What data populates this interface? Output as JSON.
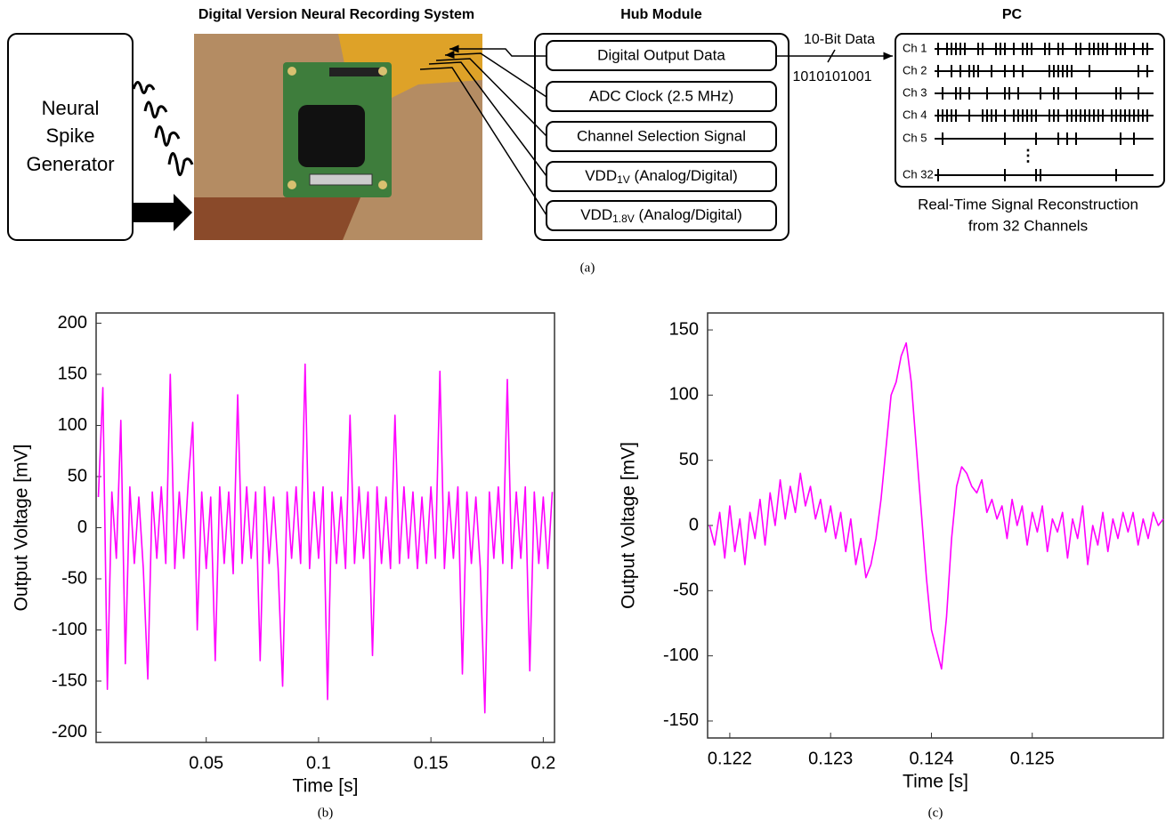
{
  "diagram": {
    "title": "Digital Version Neural Recording System",
    "generator": [
      "Neural",
      "Spike",
      "Generator"
    ],
    "hub": {
      "title": "Hub Module",
      "signals": [
        "Digital Output Data",
        "ADC Clock (2.5 MHz)",
        "Channel Selection Signal",
        {
          "name": "VDD",
          "sub": "1V",
          "rest": " (Analog/Digital)"
        },
        {
          "name": "VDD",
          "sub": "1.8V",
          "rest": " (Analog/Digital)"
        }
      ]
    },
    "link": {
      "label": "10-Bit Data",
      "bits": "1010101001"
    },
    "pc": {
      "title": "PC",
      "channels": [
        "Ch 1",
        "Ch 2",
        "Ch 3",
        "Ch 4",
        "Ch 5",
        "Ch 32"
      ],
      "caption": [
        "Real-Time Signal Reconstruction",
        "from 32 Channels"
      ]
    },
    "caption": "(a)"
  },
  "chart_data": [
    {
      "type": "line",
      "caption": "(b)",
      "x_label": "Time [s]",
      "y_label": "Output Voltage [mV]",
      "color": "#ff00ff",
      "xlim": [
        0.001,
        0.205
      ],
      "ylim": [
        -210,
        210
      ],
      "xticks": [
        0.05,
        0.1,
        0.15,
        0.2
      ],
      "yticks": [
        -200,
        -150,
        -100,
        -50,
        0,
        50,
        100,
        150,
        200
      ],
      "x": [
        0.002,
        0.004,
        0.006,
        0.008,
        0.01,
        0.012,
        0.014,
        0.016,
        0.018,
        0.02,
        0.022,
        0.024,
        0.026,
        0.028,
        0.03,
        0.032,
        0.034,
        0.036,
        0.038,
        0.04,
        0.042,
        0.044,
        0.046,
        0.048,
        0.05,
        0.052,
        0.054,
        0.056,
        0.058,
        0.06,
        0.062,
        0.064,
        0.066,
        0.068,
        0.07,
        0.072,
        0.074,
        0.076,
        0.078,
        0.08,
        0.082,
        0.084,
        0.086,
        0.088,
        0.09,
        0.092,
        0.094,
        0.096,
        0.098,
        0.1,
        0.102,
        0.104,
        0.106,
        0.108,
        0.11,
        0.112,
        0.114,
        0.116,
        0.118,
        0.12,
        0.122,
        0.124,
        0.126,
        0.128,
        0.13,
        0.132,
        0.134,
        0.136,
        0.138,
        0.14,
        0.142,
        0.144,
        0.146,
        0.148,
        0.15,
        0.152,
        0.154,
        0.156,
        0.158,
        0.16,
        0.162,
        0.164,
        0.166,
        0.168,
        0.17,
        0.172,
        0.174,
        0.176,
        0.178,
        0.18,
        0.182,
        0.184,
        0.186,
        0.188,
        0.19,
        0.192,
        0.194,
        0.196,
        0.198,
        0.2,
        0.202,
        0.204
      ],
      "values": [
        30,
        137,
        -158,
        35,
        -30,
        105,
        -133,
        40,
        -35,
        30,
        -40,
        -148,
        35,
        -30,
        40,
        -35,
        150,
        -40,
        35,
        -30,
        45,
        103,
        -100,
        35,
        -40,
        30,
        -130,
        40,
        -35,
        35,
        -45,
        130,
        -35,
        40,
        -30,
        35,
        -130,
        40,
        -35,
        30,
        -40,
        -155,
        35,
        -30,
        40,
        -35,
        160,
        -40,
        35,
        -30,
        40,
        -168,
        35,
        -35,
        30,
        -40,
        110,
        -35,
        40,
        -30,
        35,
        -125,
        40,
        -35,
        30,
        -40,
        110,
        -35,
        40,
        -30,
        35,
        -40,
        30,
        -35,
        40,
        -30,
        153,
        -40,
        35,
        -30,
        40,
        -143,
        35,
        -35,
        30,
        -40,
        -181,
        35,
        -30,
        40,
        -35,
        145,
        -40,
        35,
        -30,
        40,
        -140,
        35,
        -35,
        30,
        -40,
        35
      ]
    },
    {
      "type": "line",
      "caption": "(c)",
      "x_label": "Time [s]",
      "y_label": "Output Voltage [mV]",
      "color": "#ff00ff",
      "xlim": [
        0.12178,
        0.1263
      ],
      "ylim": [
        -163,
        163
      ],
      "xticks": [
        0.122,
        0.123,
        0.124,
        0.125
      ],
      "yticks": [
        -150,
        -100,
        -50,
        0,
        50,
        100,
        150
      ],
      "x": [
        0.1218,
        0.12185,
        0.1219,
        0.12195,
        0.122,
        0.12205,
        0.1221,
        0.12215,
        0.1222,
        0.12225,
        0.1223,
        0.12235,
        0.1224,
        0.12245,
        0.1225,
        0.12255,
        0.1226,
        0.12265,
        0.1227,
        0.12275,
        0.1228,
        0.12285,
        0.1229,
        0.12295,
        0.123,
        0.12305,
        0.1231,
        0.12315,
        0.1232,
        0.12325,
        0.1233,
        0.12335,
        0.1234,
        0.12345,
        0.1235,
        0.12355,
        0.1236,
        0.12365,
        0.1237,
        0.12375,
        0.1238,
        0.12385,
        0.1239,
        0.12395,
        0.124,
        0.12405,
        0.1241,
        0.12415,
        0.1242,
        0.12425,
        0.1243,
        0.12435,
        0.1244,
        0.12445,
        0.1245,
        0.12455,
        0.1246,
        0.12465,
        0.1247,
        0.12475,
        0.1248,
        0.12485,
        0.1249,
        0.12495,
        0.125,
        0.12505,
        0.1251,
        0.12515,
        0.1252,
        0.12525,
        0.1253,
        0.12535,
        0.1254,
        0.12545,
        0.1255,
        0.12555,
        0.1256,
        0.12565,
        0.1257,
        0.12575,
        0.1258,
        0.12585,
        0.1259,
        0.12595,
        0.126,
        0.12605,
        0.1261,
        0.12615,
        0.1262,
        0.12625,
        0.1263
      ],
      "values": [
        0,
        -15,
        10,
        -25,
        15,
        -20,
        5,
        -30,
        10,
        -10,
        20,
        -15,
        25,
        0,
        35,
        5,
        30,
        10,
        40,
        15,
        30,
        5,
        20,
        -5,
        15,
        -10,
        10,
        -20,
        5,
        -30,
        -10,
        -40,
        -30,
        -10,
        20,
        60,
        100,
        110,
        130,
        140,
        110,
        60,
        10,
        -40,
        -80,
        -95,
        -110,
        -70,
        -10,
        30,
        45,
        40,
        30,
        25,
        35,
        10,
        20,
        5,
        15,
        -10,
        20,
        0,
        15,
        -15,
        10,
        -5,
        15,
        -20,
        5,
        -5,
        10,
        -25,
        5,
        -10,
        15,
        -30,
        0,
        -15,
        10,
        -20,
        5,
        -10,
        10,
        -5,
        10,
        -15,
        5,
        -10,
        10,
        0,
        5
      ]
    }
  ]
}
